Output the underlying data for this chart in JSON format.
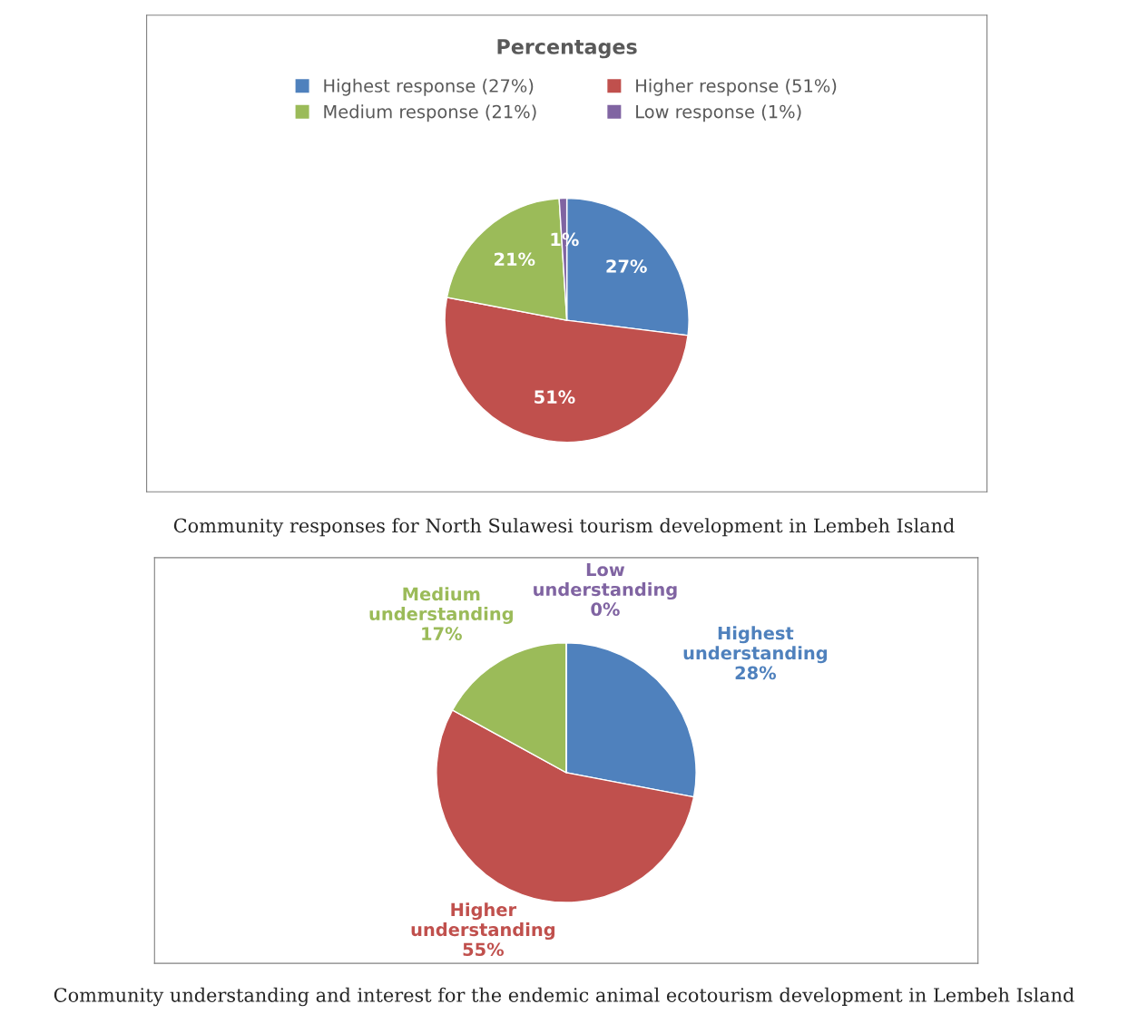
{
  "chart_data": [
    {
      "type": "pie",
      "title": "Percentages",
      "categories": [
        "Highest response (27%)",
        "Higher response (51%)",
        "Medium response (21%)",
        "Low response (1%)"
      ],
      "values": [
        27,
        51,
        21,
        1
      ],
      "colors": [
        "#4f81bd",
        "#c0504d",
        "#9bbb59",
        "#8064a2"
      ],
      "value_labels": [
        "27%",
        "51%",
        "21%",
        "1%"
      ],
      "legend": "top",
      "annotations": [
        "Community responses for North Sulawesi tourism development in Lembeh Island"
      ]
    },
    {
      "type": "pie",
      "categories": [
        "Highest understanding",
        "Higher understanding",
        "Medium understanding",
        "Low understanding"
      ],
      "values": [
        28,
        55,
        17,
        0
      ],
      "colors": [
        "#4f81bd",
        "#c0504d",
        "#9bbb59",
        "#8064a2"
      ],
      "value_labels": [
        "28%",
        "55%",
        "17%",
        "0%"
      ],
      "annotations": [
        "Community understanding and interest for the endemic animal ecotourism development in Lembeh Island"
      ]
    }
  ]
}
